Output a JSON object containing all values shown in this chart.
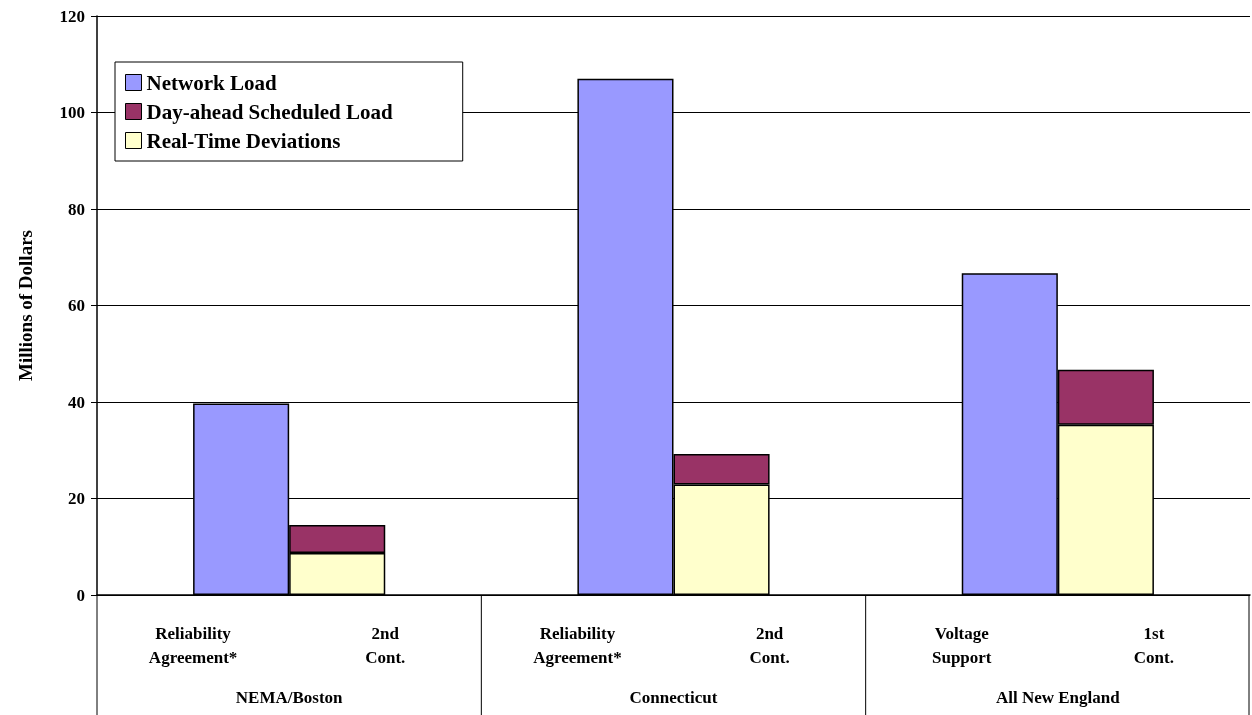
{
  "chart_data": {
    "type": "bar",
    "ylabel": "Millions of Dollars",
    "categories": [
      "Reliability Agreement*",
      "2nd Cont.",
      "Reliability Agreement*",
      "2nd Cont.",
      "Voltage Support",
      "1st Cont."
    ],
    "series": [
      {
        "name": "Real-Time Deviations",
        "color": "#ffffcc",
        "values": [
          null,
          8.7,
          null,
          22.9,
          null,
          35.3
        ]
      },
      {
        "name": "Day-ahead Scheduled Load",
        "color": "#993366",
        "values": [
          null,
          5.8,
          null,
          6.3,
          null,
          11.4
        ]
      },
      {
        "name": "Network Load",
        "color": "#9999ff",
        "values": [
          39.7,
          null,
          107,
          null,
          66.7,
          null
        ]
      }
    ],
    "stacked": true,
    "ylim": [
      0,
      120
    ],
    "yticks": [
      0,
      20,
      40,
      60,
      80,
      100,
      120
    ],
    "grid": "y",
    "legend": "top left",
    "annotations": [
      "NEMA/Boston",
      "Connecticut",
      "All New England"
    ]
  }
}
